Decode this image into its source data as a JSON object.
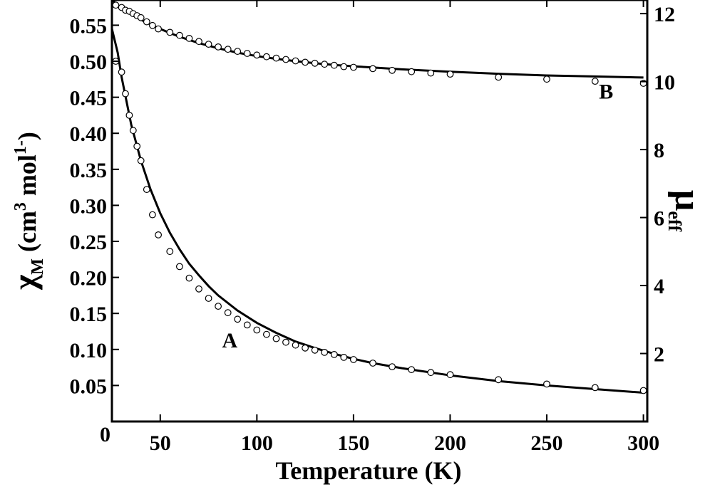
{
  "chart_data": {
    "type": "scatter",
    "title": "",
    "xlabel": "Temperature (K)",
    "ylabel_left": {
      "symbol": "χ",
      "sub": "M",
      "unit_pre": " (cm",
      "unit_sup1": "3",
      "unit_mid": " mol",
      "unit_sup2": "1-",
      "unit_post": ")"
    },
    "ylabel_right": {
      "symbol": "μ",
      "sub": "eff"
    },
    "xlim": [
      25,
      302
    ],
    "ylim_left": [
      0.0,
      0.585
    ],
    "ylim_right": [
      0,
      12.4
    ],
    "x_ticks": [
      {
        "v": 50,
        "label": "50"
      },
      {
        "v": 100,
        "label": "100"
      },
      {
        "v": 150,
        "label": "150"
      },
      {
        "v": 200,
        "label": "200"
      },
      {
        "v": 250,
        "label": "250"
      },
      {
        "v": 300,
        "label": "300"
      }
    ],
    "origin_label": "0",
    "y_left_ticks": [
      {
        "v": 0.05,
        "label": "0.05"
      },
      {
        "v": 0.1,
        "label": "0.10"
      },
      {
        "v": 0.15,
        "label": "0.15"
      },
      {
        "v": 0.2,
        "label": "0.20"
      },
      {
        "v": 0.25,
        "label": "0.25"
      },
      {
        "v": 0.3,
        "label": "0.30"
      },
      {
        "v": 0.35,
        "label": "0.35"
      },
      {
        "v": 0.4,
        "label": "0.40"
      },
      {
        "v": 0.45,
        "label": "0.45"
      },
      {
        "v": 0.5,
        "label": "0.50"
      },
      {
        "v": 0.55,
        "label": "0.55"
      }
    ],
    "y_right_ticks": [
      {
        "v": 2,
        "label": "2"
      },
      {
        "v": 4,
        "label": "4"
      },
      {
        "v": 6,
        "label": "6"
      },
      {
        "v": 8,
        "label": "8"
      },
      {
        "v": 10,
        "label": "10"
      },
      {
        "v": 12,
        "label": "12"
      }
    ],
    "grid": false,
    "legend": "none",
    "series": [
      {
        "axis": "left",
        "label_text": "A",
        "label_at": {
          "x": 82,
          "y": 0.103
        },
        "points": {
          "x": [
            27,
            30,
            32,
            34,
            36,
            38,
            40,
            43,
            46,
            49,
            55,
            60,
            65,
            70,
            75,
            80,
            85,
            90,
            95,
            100,
            105,
            110,
            115,
            120,
            125,
            130,
            135,
            140,
            145,
            150,
            160,
            170,
            180,
            190,
            200,
            225,
            250,
            275,
            300
          ],
          "y": [
            0.5,
            0.485,
            0.455,
            0.425,
            0.404,
            0.382,
            0.362,
            0.322,
            0.287,
            0.259,
            0.236,
            0.215,
            0.199,
            0.184,
            0.171,
            0.16,
            0.151,
            0.142,
            0.134,
            0.127,
            0.121,
            0.115,
            0.11,
            0.106,
            0.102,
            0.099,
            0.096,
            0.093,
            0.089,
            0.086,
            0.081,
            0.076,
            0.072,
            0.068,
            0.065,
            0.058,
            0.052,
            0.047,
            0.043
          ]
        },
        "fit": {
          "x": [
            25,
            28,
            30,
            35,
            40,
            45,
            50,
            55,
            60,
            65,
            70,
            75,
            80,
            90,
            100,
            110,
            120,
            130,
            140,
            150,
            160,
            175,
            200,
            225,
            250,
            275,
            300
          ],
          "y": [
            0.545,
            0.512,
            0.478,
            0.412,
            0.362,
            0.322,
            0.289,
            0.262,
            0.239,
            0.219,
            0.203,
            0.188,
            0.175,
            0.154,
            0.137,
            0.123,
            0.111,
            0.102,
            0.094,
            0.087,
            0.081,
            0.074,
            0.064,
            0.056,
            0.05,
            0.045,
            0.04
          ]
        }
      },
      {
        "axis": "right",
        "label_text": "B",
        "label_at": {
          "x": 277,
          "y": 9.5
        },
        "points": {
          "x": [
            27,
            30,
            32,
            34,
            36,
            38,
            40,
            43,
            46,
            49,
            55,
            60,
            65,
            70,
            75,
            80,
            85,
            90,
            95,
            100,
            105,
            110,
            115,
            120,
            125,
            130,
            135,
            140,
            145,
            150,
            160,
            170,
            180,
            190,
            200,
            225,
            250,
            275,
            300
          ],
          "y": [
            12.25,
            12.18,
            12.1,
            12.07,
            12.0,
            11.94,
            11.88,
            11.76,
            11.65,
            11.55,
            11.45,
            11.36,
            11.27,
            11.18,
            11.1,
            11.02,
            10.95,
            10.89,
            10.83,
            10.78,
            10.73,
            10.69,
            10.65,
            10.61,
            10.57,
            10.54,
            10.51,
            10.48,
            10.44,
            10.42,
            10.38,
            10.33,
            10.29,
            10.25,
            10.22,
            10.13,
            10.07,
            10.01,
            9.95
          ]
        },
        "fit": {
          "x": [
            25,
            30,
            35,
            40,
            45,
            50,
            55,
            60,
            70,
            80,
            90,
            100,
            110,
            120,
            130,
            140,
            150,
            175,
            200,
            225,
            250,
            275,
            300
          ],
          "y": [
            12.4,
            12.15,
            11.97,
            11.82,
            11.68,
            11.55,
            11.43,
            11.32,
            11.13,
            10.98,
            10.85,
            10.75,
            10.67,
            10.6,
            10.54,
            10.49,
            10.45,
            10.36,
            10.29,
            10.23,
            10.18,
            10.15,
            10.12
          ]
        }
      }
    ]
  }
}
